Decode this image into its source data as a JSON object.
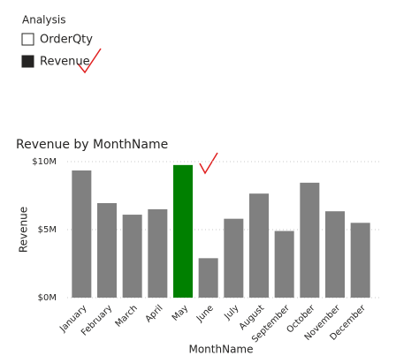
{
  "slicer": {
    "title": "Analysis",
    "items": [
      {
        "label": "OrderQty",
        "checked": false
      },
      {
        "label": "Revenue",
        "checked": true
      }
    ]
  },
  "chart_data": {
    "type": "bar",
    "title": "Revenue by MonthName",
    "x_label": "MonthName",
    "y_label": "Revenue",
    "categories": [
      "January",
      "February",
      "March",
      "April",
      "May",
      "June",
      "July",
      "August",
      "September",
      "October",
      "November",
      "December"
    ],
    "values": [
      9.35,
      6.95,
      6.1,
      6.5,
      9.75,
      2.9,
      5.8,
      7.65,
      4.9,
      8.45,
      6.35,
      5.5
    ],
    "colors": [
      "#808080",
      "#808080",
      "#808080",
      "#808080",
      "#008000",
      "#808080",
      "#808080",
      "#808080",
      "#808080",
      "#808080",
      "#808080",
      "#808080"
    ],
    "ylim": [
      0,
      10
    ],
    "yticks": [
      {
        "value": 0,
        "label": "$0M"
      },
      {
        "value": 5,
        "label": "$5M"
      },
      {
        "value": 10,
        "label": "$10M"
      }
    ],
    "grid": true
  }
}
